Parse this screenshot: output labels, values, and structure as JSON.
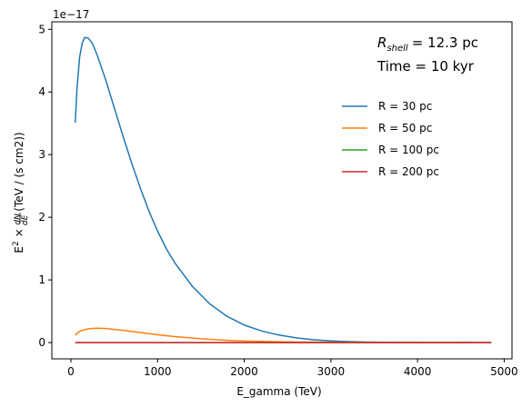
{
  "chart_data": {
    "type": "line",
    "xlabel": "E_gamma (TeV)",
    "ylabel_base": "E",
    "ylabel_rest": "(TeV / (s cm2))",
    "y_offset_text": "1e−17",
    "xlim": [
      -220,
      5090
    ],
    "ylim": [
      -0.26,
      5.12
    ],
    "x_ticks": [
      0,
      1000,
      2000,
      3000,
      4000,
      5000
    ],
    "x_tick_labels": [
      "0",
      "1000",
      "2000",
      "3000",
      "4000",
      "5000"
    ],
    "y_ticks": [
      0,
      1,
      2,
      3,
      4,
      5
    ],
    "y_tick_labels": [
      "0",
      "1",
      "2",
      "3",
      "4",
      "5"
    ],
    "grid": false,
    "legend_position": "center-right",
    "annotations": {
      "rshell_value": "= 12.3 pc",
      "time_text": "Time = 10 kyr"
    },
    "series": [
      {
        "name": "R = 30 pc",
        "color": "#1f77b4",
        "x": [
          50,
          70,
          100,
          130,
          160,
          200,
          250,
          300,
          400,
          500,
          600,
          700,
          800,
          900,
          1000,
          1100,
          1200,
          1400,
          1600,
          1800,
          2000,
          2200,
          2400,
          2600,
          2800,
          3000,
          3200,
          3400,
          3600,
          3800,
          4000,
          4300,
          4600,
          4850
        ],
        "values": [
          3.51,
          4.05,
          4.55,
          4.78,
          4.87,
          4.86,
          4.77,
          4.6,
          4.2,
          3.75,
          3.3,
          2.87,
          2.47,
          2.1,
          1.78,
          1.5,
          1.27,
          0.9,
          0.62,
          0.42,
          0.28,
          0.185,
          0.12,
          0.075,
          0.045,
          0.027,
          0.015,
          0.008,
          0.004,
          0.002,
          0.001,
          0.0004,
          0.0001,
          0.0
        ]
      },
      {
        "name": "R = 50 pc",
        "color": "#ff7f0e",
        "x": [
          50,
          100,
          200,
          300,
          400,
          500,
          600,
          800,
          1000,
          1200,
          1500,
          1800,
          2000,
          2500,
          3000,
          3500,
          4000,
          4850
        ],
        "values": [
          0.12,
          0.18,
          0.22,
          0.23,
          0.225,
          0.21,
          0.195,
          0.16,
          0.125,
          0.095,
          0.06,
          0.035,
          0.025,
          0.01,
          0.004,
          0.0015,
          0.0005,
          0.0
        ]
      },
      {
        "name": "R = 100 pc",
        "color": "#2ca02c",
        "x": [
          50,
          1000,
          2000,
          3000,
          4000,
          4850
        ],
        "values": [
          0.0,
          0.0,
          0.0,
          0.0,
          0.0,
          0.0
        ]
      },
      {
        "name": "R = 200 pc",
        "color": "#d62728",
        "x": [
          50,
          1000,
          2000,
          3000,
          4000,
          4850
        ],
        "values": [
          0.0,
          0.0,
          0.0,
          0.0,
          0.0,
          0.0
        ]
      }
    ]
  }
}
